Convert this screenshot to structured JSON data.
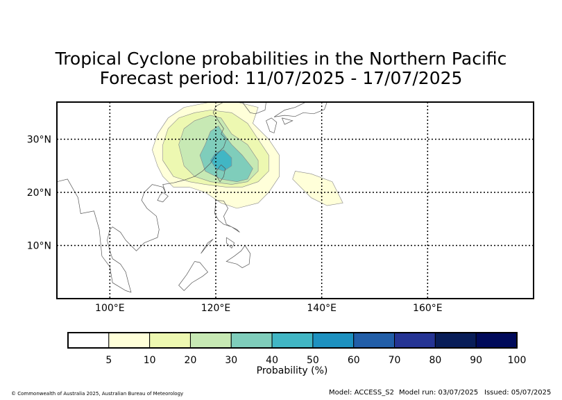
{
  "title_line1": "Tropical Cyclone probabilities in the Northern Pacific",
  "title_line2": "Forecast period: 11/07/2025 - 17/07/2025",
  "lat_labels": [
    "30°N",
    "20°N",
    "10°N"
  ],
  "lon_labels": [
    "100°E",
    "120°E",
    "140°E",
    "160°E"
  ],
  "colorbar": {
    "label": "Probability (%)",
    "ticks": [
      "5",
      "10",
      "20",
      "30",
      "40",
      "50",
      "60",
      "70",
      "80",
      "90",
      "100"
    ],
    "colors": [
      "#ffffff",
      "#ffffd9",
      "#edf8b1",
      "#c7e9b4",
      "#7fcdbb",
      "#41b6c4",
      "#1d91c0",
      "#225ea8",
      "#253494",
      "#081d58",
      "#000a5a"
    ]
  },
  "footer": {
    "copyright": "© Commonwealth of Australia 2025, Australian Bureau of Meteorology",
    "model": "Model: ACCESS_S2",
    "model_run": "Model run: 03/07/2025",
    "issued": "Issued: 05/07/2025"
  },
  "map_data": {
    "extent": {
      "lon_min": 90,
      "lon_max": 180,
      "lat_min": 0,
      "lat_max": 37
    },
    "probability_regions": [
      {
        "level": 5,
        "color": "#ffffd9",
        "polygon": [
          [
            108,
            28
          ],
          [
            109,
            31
          ],
          [
            111,
            34
          ],
          [
            114,
            36
          ],
          [
            119,
            37
          ],
          [
            124,
            37
          ],
          [
            128,
            36
          ],
          [
            127,
            33
          ],
          [
            130,
            30
          ],
          [
            132,
            27
          ],
          [
            132,
            23
          ],
          [
            130,
            20
          ],
          [
            128,
            18
          ],
          [
            124,
            17
          ],
          [
            121,
            18
          ],
          [
            118,
            20
          ],
          [
            115,
            21
          ],
          [
            112,
            21
          ],
          [
            110,
            23
          ],
          [
            109,
            25
          ]
        ]
      },
      {
        "level": 5,
        "color": "#ffffd9",
        "polygon": [
          [
            135,
            24
          ],
          [
            138,
            23.5
          ],
          [
            142,
            22
          ],
          [
            144,
            18
          ],
          [
            141,
            17.5
          ],
          [
            138,
            19
          ],
          [
            136,
            21
          ],
          [
            134.5,
            22.5
          ]
        ]
      },
      {
        "level": 10,
        "color": "#edf8b1",
        "polygon": [
          [
            110,
            29
          ],
          [
            111,
            32
          ],
          [
            113,
            34
          ],
          [
            116,
            35
          ],
          [
            119,
            35.5
          ],
          [
            123,
            35
          ],
          [
            126,
            33
          ],
          [
            128,
            30
          ],
          [
            130,
            27
          ],
          [
            130,
            24
          ],
          [
            128,
            22
          ],
          [
            125,
            21
          ],
          [
            122,
            21
          ],
          [
            118,
            21.5
          ],
          [
            115,
            22
          ],
          [
            112,
            23
          ],
          [
            110,
            26
          ]
        ]
      },
      {
        "level": 20,
        "color": "#c7e9b4",
        "polygon": [
          [
            113,
            29
          ],
          [
            114,
            32
          ],
          [
            116,
            33.5
          ],
          [
            119,
            34.5
          ],
          [
            121,
            34
          ],
          [
            123,
            31
          ],
          [
            126,
            29
          ],
          [
            128,
            26
          ],
          [
            128,
            24
          ],
          [
            126,
            22
          ],
          [
            123,
            21.5
          ],
          [
            119,
            22
          ],
          [
            116,
            23
          ],
          [
            114,
            25
          ]
        ]
      },
      {
        "level": 30,
        "color": "#7fcdbb",
        "polygon": [
          [
            117,
            27
          ],
          [
            118,
            29
          ],
          [
            119,
            31.5
          ],
          [
            120.5,
            32.5
          ],
          [
            121.5,
            31
          ],
          [
            123,
            29
          ],
          [
            125,
            27
          ],
          [
            127,
            24.5
          ],
          [
            126,
            22.5
          ],
          [
            124,
            22
          ],
          [
            121,
            22.5
          ],
          [
            118,
            24
          ]
        ]
      },
      {
        "level": 40,
        "color": "#41b6c4",
        "polygon": [
          [
            119,
            26
          ],
          [
            120,
            27.5
          ],
          [
            121.5,
            28
          ],
          [
            123,
            26.5
          ],
          [
            123,
            25
          ],
          [
            121.5,
            24
          ],
          [
            120,
            24.5
          ]
        ]
      }
    ],
    "coastlines": [
      [
        [
          90,
          22
        ],
        [
          92,
          22.5
        ],
        [
          94,
          19
        ],
        [
          94.5,
          16
        ],
        [
          97,
          16.5
        ],
        [
          98,
          13
        ],
        [
          98.5,
          8
        ],
        [
          100,
          6
        ],
        [
          100.5,
          3
        ],
        [
          103,
          1.5
        ],
        [
          104,
          1.2
        ],
        [
          103.5,
          3
        ],
        [
          103,
          5
        ],
        [
          102,
          6.5
        ],
        [
          100.5,
          7.5
        ],
        [
          100,
          9
        ],
        [
          99.5,
          11
        ],
        [
          100,
          13
        ],
        [
          100.5,
          13.5
        ],
        [
          102,
          12.5
        ],
        [
          103,
          11
        ],
        [
          105,
          9
        ],
        [
          106.5,
          10.5
        ],
        [
          109,
          11.5
        ],
        [
          109.3,
          13
        ],
        [
          108.8,
          15.5
        ],
        [
          107,
          17
        ],
        [
          106,
          18.5
        ],
        [
          106.5,
          20
        ],
        [
          108,
          21.5
        ],
        [
          110,
          21
        ],
        [
          110.5,
          20
        ],
        [
          110,
          21.5
        ],
        [
          112,
          21.8
        ],
        [
          114,
          22.3
        ],
        [
          116,
          23
        ],
        [
          117.5,
          24
        ],
        [
          119,
          25.5
        ],
        [
          120,
          27
        ],
        [
          121.5,
          28.5
        ],
        [
          122,
          30
        ],
        [
          121,
          31
        ],
        [
          121.5,
          32
        ],
        [
          120.5,
          33.5
        ],
        [
          119.5,
          35
        ],
        [
          120,
          36.2
        ],
        [
          121.5,
          37
        ]
      ],
      [
        [
          110,
          20
        ],
        [
          109.5,
          19.5
        ],
        [
          109,
          18.5
        ],
        [
          110,
          18.2
        ],
        [
          111,
          19.3
        ],
        [
          110,
          20
        ]
      ],
      [
        [
          121,
          25.2
        ],
        [
          121.8,
          24.5
        ],
        [
          121.5,
          23
        ],
        [
          120.8,
          22
        ],
        [
          120.2,
          23
        ],
        [
          120.1,
          24
        ],
        [
          121,
          25.2
        ]
      ],
      [
        [
          120,
          18.5
        ],
        [
          121.5,
          18.4
        ],
        [
          122.3,
          17
        ],
        [
          121.5,
          15.5
        ],
        [
          122,
          14
        ],
        [
          124,
          13
        ],
        [
          124.5,
          12.5
        ],
        [
          123,
          13.5
        ],
        [
          121.5,
          14
        ],
        [
          120.5,
          14.8
        ],
        [
          119.8,
          16
        ],
        [
          120,
          18.5
        ]
      ],
      [
        [
          122,
          11.5
        ],
        [
          123.5,
          10.5
        ],
        [
          123,
          9.5
        ],
        [
          122,
          10.5
        ],
        [
          122,
          11.5
        ]
      ],
      [
        [
          125.5,
          10
        ],
        [
          126.5,
          8.5
        ],
        [
          126.3,
          6.5
        ],
        [
          125,
          5.8
        ],
        [
          124,
          6.5
        ],
        [
          122,
          7
        ],
        [
          123.5,
          8
        ],
        [
          124.8,
          9
        ],
        [
          125.5,
          10
        ]
      ],
      [
        [
          118.5,
          10.5
        ],
        [
          119.5,
          11.2
        ],
        [
          118,
          9.5
        ],
        [
          117.2,
          8.5
        ],
        [
          118.5,
          10.5
        ]
      ],
      [
        [
          116,
          7
        ],
        [
          117,
          6.8
        ],
        [
          118.5,
          5
        ],
        [
          117.5,
          4.2
        ],
        [
          115.5,
          3
        ],
        [
          114,
          1.5
        ],
        [
          113,
          2.5
        ],
        [
          114.5,
          4.5
        ],
        [
          116,
          7
        ]
      ],
      [
        [
          125,
          37
        ],
        [
          126.5,
          35
        ],
        [
          127.5,
          34.8
        ],
        [
          129.3,
          35.5
        ],
        [
          129.5,
          37
        ]
      ],
      [
        [
          129.5,
          33.5
        ],
        [
          130.5,
          34
        ],
        [
          131.5,
          33.2
        ],
        [
          131,
          31.2
        ],
        [
          130.2,
          31.5
        ],
        [
          129.5,
          33.5
        ]
      ],
      [
        [
          131,
          34.2
        ],
        [
          133,
          34.5
        ],
        [
          135,
          34.3
        ],
        [
          136.5,
          35
        ],
        [
          138.5,
          34.8
        ],
        [
          140.5,
          35.6
        ],
        [
          141,
          37
        ],
        [
          137,
          37
        ],
        [
          135,
          36
        ],
        [
          133,
          35.5
        ],
        [
          131,
          34.2
        ]
      ],
      [
        [
          132.5,
          34
        ],
        [
          134.5,
          33.5
        ],
        [
          133,
          32.8
        ],
        [
          132.5,
          34
        ]
      ]
    ]
  }
}
